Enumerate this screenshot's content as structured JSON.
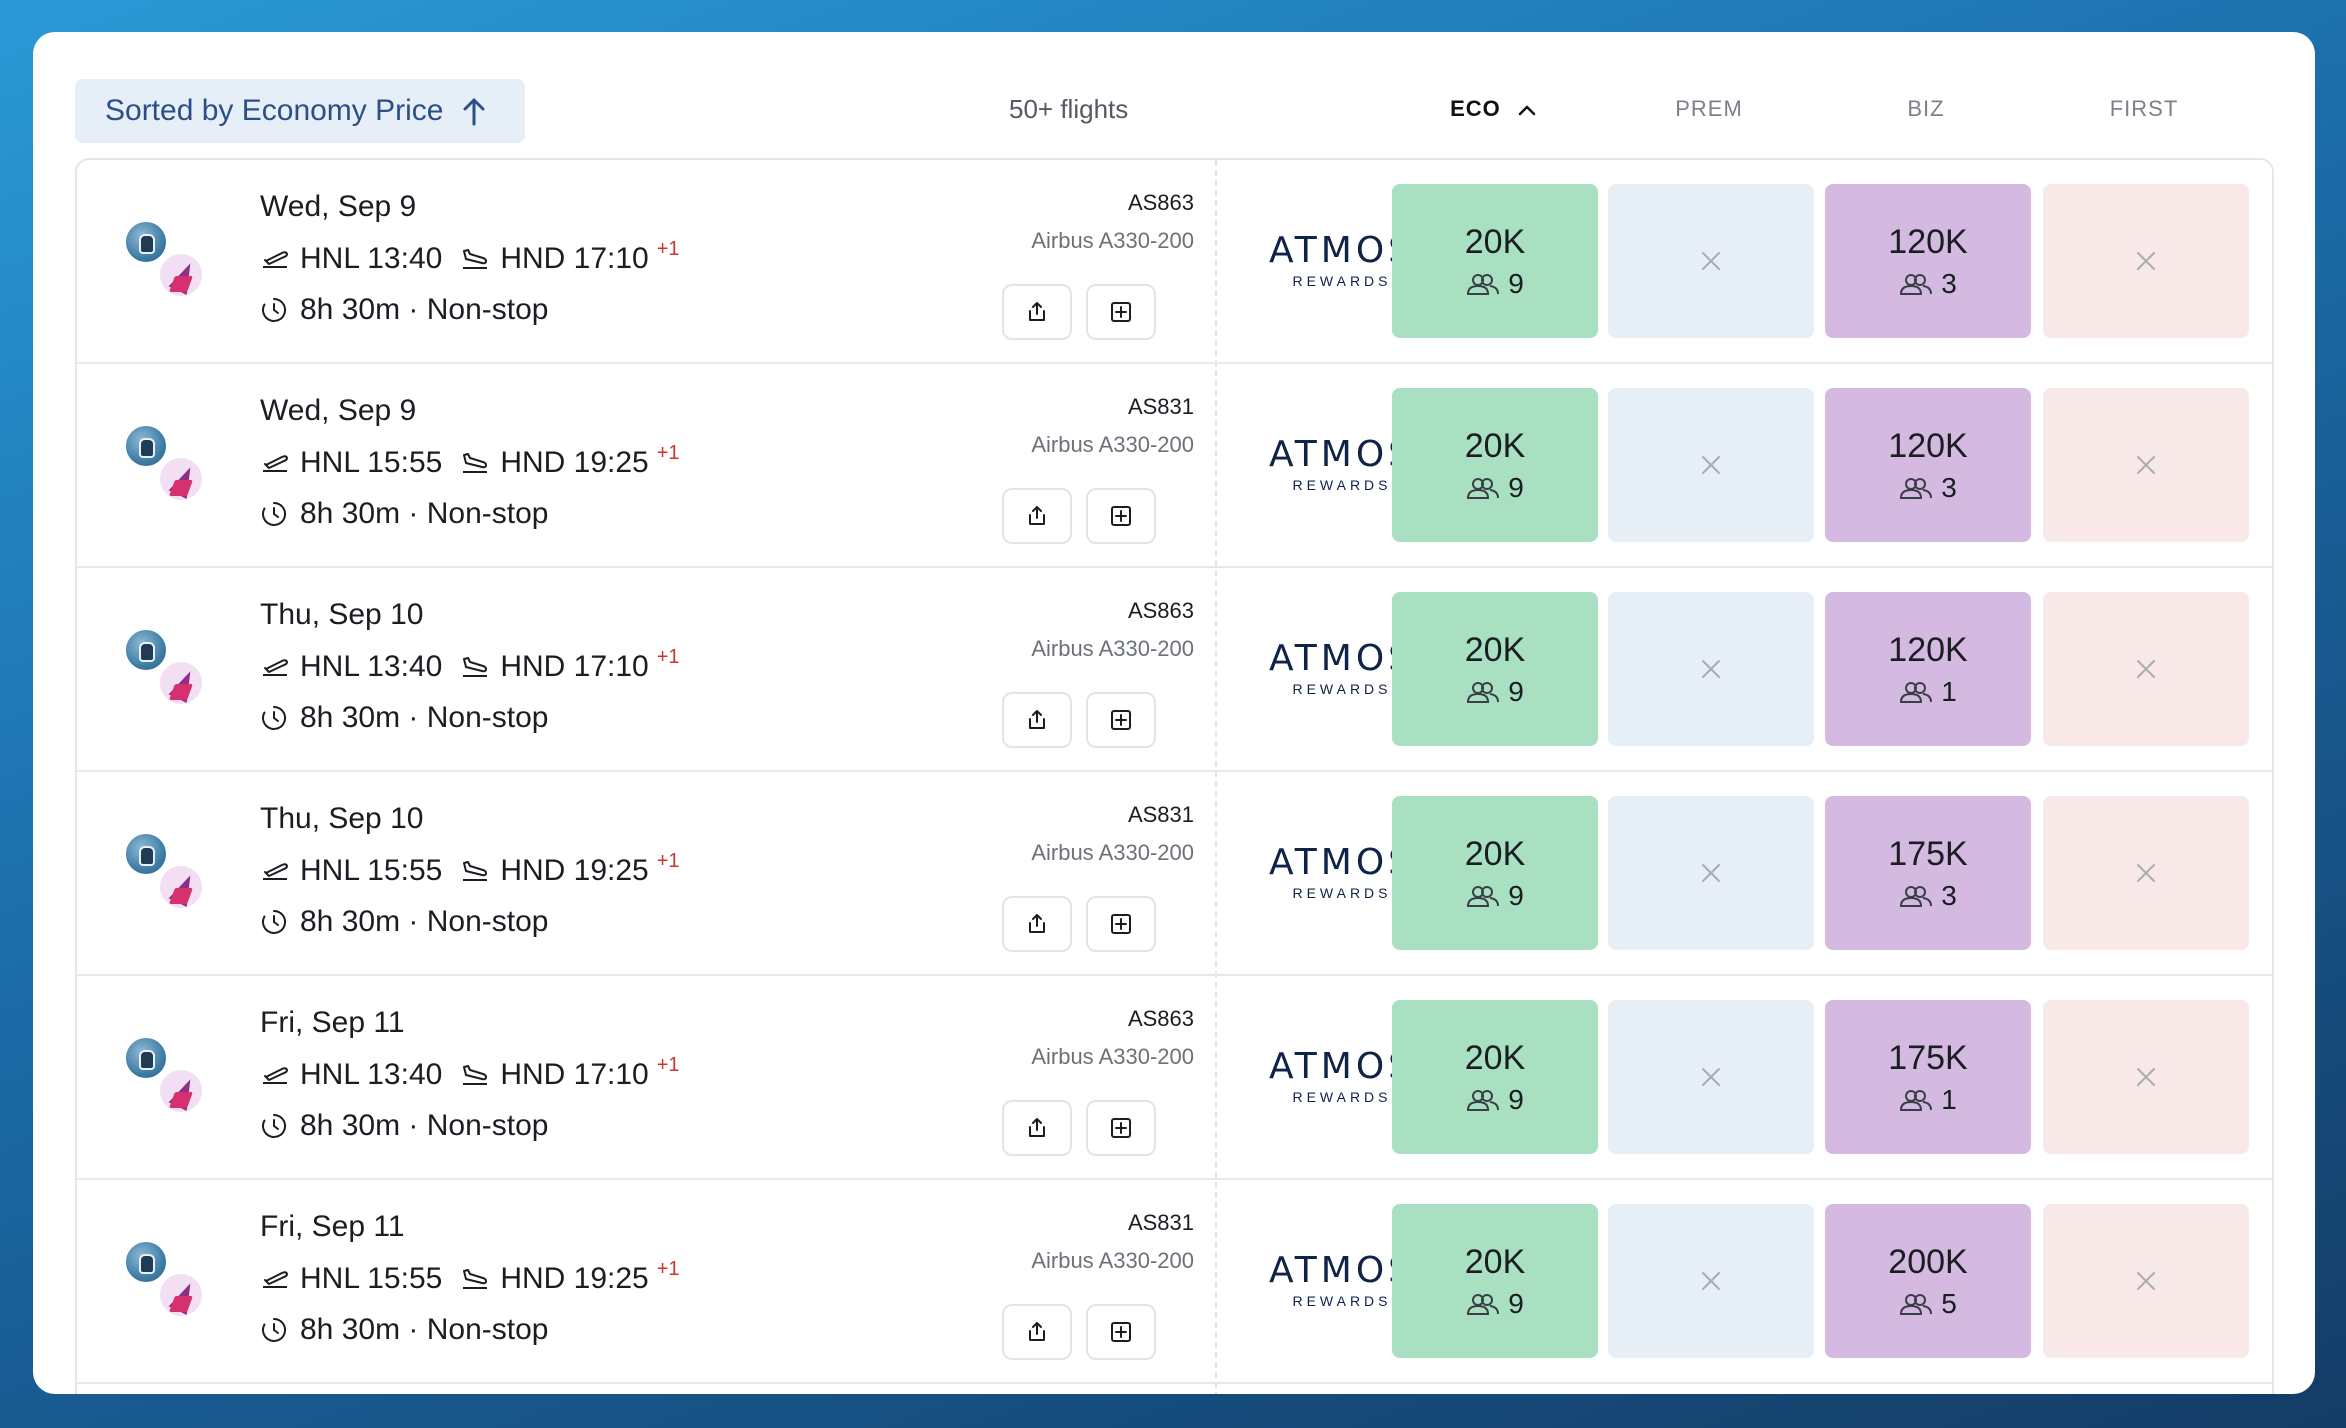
{
  "header": {
    "sort_label": "Sorted by Economy Price",
    "flight_count": "50+ flights",
    "columns": [
      "ECO",
      "PREM",
      "BIZ",
      "FIRST"
    ]
  },
  "program": {
    "name": "ATMOS",
    "sub": "REWARDS"
  },
  "colors": {
    "eco": "#a9e0c2",
    "prem": "#e6eef6",
    "biz": "#d4b9e0",
    "first": "#f8e8e8",
    "accent": "#2c4f86",
    "next_day": "#d2322d"
  },
  "flights": [
    {
      "date": "Wed, Sep 9",
      "dep": "HNL 13:40",
      "arr": "HND 17:10",
      "day_offset": "+1",
      "duration": "8h 30m",
      "stops": "Non-stop",
      "flight_no": "AS863",
      "aircraft": "Airbus A330-200",
      "eco": {
        "price": "20K",
        "seats": "9"
      },
      "biz": {
        "price": "120K",
        "seats": "3"
      }
    },
    {
      "date": "Wed, Sep 9",
      "dep": "HNL 15:55",
      "arr": "HND 19:25",
      "day_offset": "+1",
      "duration": "8h 30m",
      "stops": "Non-stop",
      "flight_no": "AS831",
      "aircraft": "Airbus A330-200",
      "eco": {
        "price": "20K",
        "seats": "9"
      },
      "biz": {
        "price": "120K",
        "seats": "3"
      }
    },
    {
      "date": "Thu, Sep 10",
      "dep": "HNL 13:40",
      "arr": "HND 17:10",
      "day_offset": "+1",
      "duration": "8h 30m",
      "stops": "Non-stop",
      "flight_no": "AS863",
      "aircraft": "Airbus A330-200",
      "eco": {
        "price": "20K",
        "seats": "9"
      },
      "biz": {
        "price": "120K",
        "seats": "1"
      }
    },
    {
      "date": "Thu, Sep 10",
      "dep": "HNL 15:55",
      "arr": "HND 19:25",
      "day_offset": "+1",
      "duration": "8h 30m",
      "stops": "Non-stop",
      "flight_no": "AS831",
      "aircraft": "Airbus A330-200",
      "eco": {
        "price": "20K",
        "seats": "9"
      },
      "biz": {
        "price": "175K",
        "seats": "3"
      }
    },
    {
      "date": "Fri, Sep 11",
      "dep": "HNL 13:40",
      "arr": "HND 17:10",
      "day_offset": "+1",
      "duration": "8h 30m",
      "stops": "Non-stop",
      "flight_no": "AS863",
      "aircraft": "Airbus A330-200",
      "eco": {
        "price": "20K",
        "seats": "9"
      },
      "biz": {
        "price": "175K",
        "seats": "1"
      }
    },
    {
      "date": "Fri, Sep 11",
      "dep": "HNL 15:55",
      "arr": "HND 19:25",
      "day_offset": "+1",
      "duration": "8h 30m",
      "stops": "Non-stop",
      "flight_no": "AS831",
      "aircraft": "Airbus A330-200",
      "eco": {
        "price": "20K",
        "seats": "9"
      },
      "biz": {
        "price": "200K",
        "seats": "5"
      }
    }
  ]
}
